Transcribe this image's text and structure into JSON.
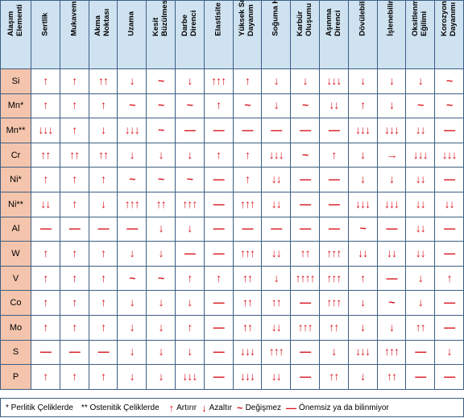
{
  "header_corner": "Alaşım\nElementi",
  "columns": [
    "Sertlik",
    "Mukavemet",
    "Akma\nNoktası",
    "Uzama",
    "Kesit\nBüzülmesi",
    "Darbe\nDirenci",
    "Elastisite",
    "Yüksek Sıcaklığa\nDayanım",
    "Soğuma Hızı",
    "Karbür\nOluşumu",
    "Aşınma\nDirenci",
    "Dövülebilirlik",
    "İşlenebilirlik",
    "Oksitlenme\nEğilimi",
    "Korozyon\nDayanımı"
  ],
  "rows": [
    {
      "element": "Si",
      "cells": [
        "↑",
        "↑",
        "↑↑",
        "↓",
        "~",
        "↓",
        "↑↑↑",
        "↑",
        "↓",
        "↓",
        "↓↓↓",
        "↓",
        "↓",
        "↓",
        "~"
      ]
    },
    {
      "element": "Mn*",
      "cells": [
        "↑",
        "↑",
        "↑",
        "~",
        "~",
        "~",
        "↑",
        "~",
        "↓",
        "~",
        "↓↓",
        "↑",
        "↓",
        "~",
        "~"
      ]
    },
    {
      "element": "Mn**",
      "cells": [
        "↓↓↓",
        "↑",
        "↓",
        "↓↓↓",
        "~",
        "—",
        "—",
        "—",
        "—",
        "—",
        "—",
        "↓↓↓",
        "↓↓↓",
        "↓↓",
        "—"
      ]
    },
    {
      "element": "Cr",
      "cells": [
        "↑↑",
        "↑↑",
        "↑↑",
        "↓",
        "↓",
        "↓",
        "↑",
        "↑",
        "↓↓↓",
        "~",
        "↑",
        "↓",
        "→",
        "↓↓↓",
        "↓↓↓"
      ]
    },
    {
      "element": "Ni*",
      "cells": [
        "↑",
        "↑",
        "↑",
        "~",
        "~",
        "~",
        "—",
        "↑",
        "↓↓",
        "—",
        "—",
        "↓",
        "↓",
        "↓↓",
        "—"
      ]
    },
    {
      "element": "Ni**",
      "cells": [
        "↓↓",
        "↑",
        "↓",
        "↑↑↑",
        "↑↑",
        "↑↑↑",
        "—",
        "↑↑↑",
        "↓↓",
        "—",
        "—",
        "↓↓↓",
        "↓↓↓",
        "↓↓",
        "↓↓"
      ]
    },
    {
      "element": "Al",
      "cells": [
        "—",
        "—",
        "—",
        "—",
        "↓",
        "↓",
        "—",
        "—",
        "—",
        "—",
        "—",
        "~",
        "—",
        "↓↓",
        "—"
      ]
    },
    {
      "element": "W",
      "cells": [
        "↑",
        "↑",
        "↑",
        "↓",
        "↓",
        "—",
        "—",
        "↑↑↑",
        "↓↓",
        "↑↑",
        "↑↑↑",
        "↓↓",
        "↓↓",
        "↓↓",
        "—"
      ]
    },
    {
      "element": "V",
      "cells": [
        "↑",
        "↑",
        "↑",
        "~",
        "~",
        "↑",
        "↑",
        "↑↑",
        "↓",
        "↑↑↑↑",
        "↑↑↑",
        "↑",
        "—",
        "↓",
        "↑"
      ]
    },
    {
      "element": "Co",
      "cells": [
        "↑",
        "↑",
        "↑",
        "↓",
        "↓",
        "↓",
        "—",
        "↑↑",
        "↑↑",
        "—",
        "↑↑↑",
        "↓",
        "~",
        "↓",
        "—"
      ]
    },
    {
      "element": "Mo",
      "cells": [
        "↑",
        "↑",
        "↑",
        "↓",
        "↓",
        "↑",
        "—",
        "↑↑",
        "↓↓",
        "↑↑↑",
        "↑↑",
        "↓",
        "↓",
        "↑↑",
        "—"
      ]
    },
    {
      "element": "S",
      "cells": [
        "—",
        "—",
        "—",
        "↓",
        "↓",
        "↓",
        "—",
        "↓↓↓",
        "↑↑↑",
        "—",
        "↓",
        "↓↓↓",
        "↑↑↑",
        "—",
        "↓"
      ]
    },
    {
      "element": "P",
      "cells": [
        "↑",
        "↑",
        "↑",
        "↓",
        "↓",
        "↓↓↓",
        "—",
        "↓↓↓",
        "↓↓",
        "—",
        "↑↑",
        "↓",
        "↑↑",
        "—",
        "—"
      ]
    }
  ],
  "legend": {
    "note1": "* Perlitik Çeliklerde",
    "note2": "** Ostenitik Çeliklerde",
    "increase": {
      "symbol": "↑",
      "label": "Artırır"
    },
    "decrease": {
      "symbol": "↓",
      "label": "Azaltır"
    },
    "change": {
      "symbol": "~",
      "label": "Değişmez"
    },
    "unknown": {
      "symbol": "—",
      "label": "Önemsiz ya da bilinmiyor"
    }
  },
  "colors": {
    "header_bg": "#cfe2f0",
    "element_bg": "#f4c4ac",
    "border": "#3d5f85",
    "symbol": "#d8161f"
  }
}
